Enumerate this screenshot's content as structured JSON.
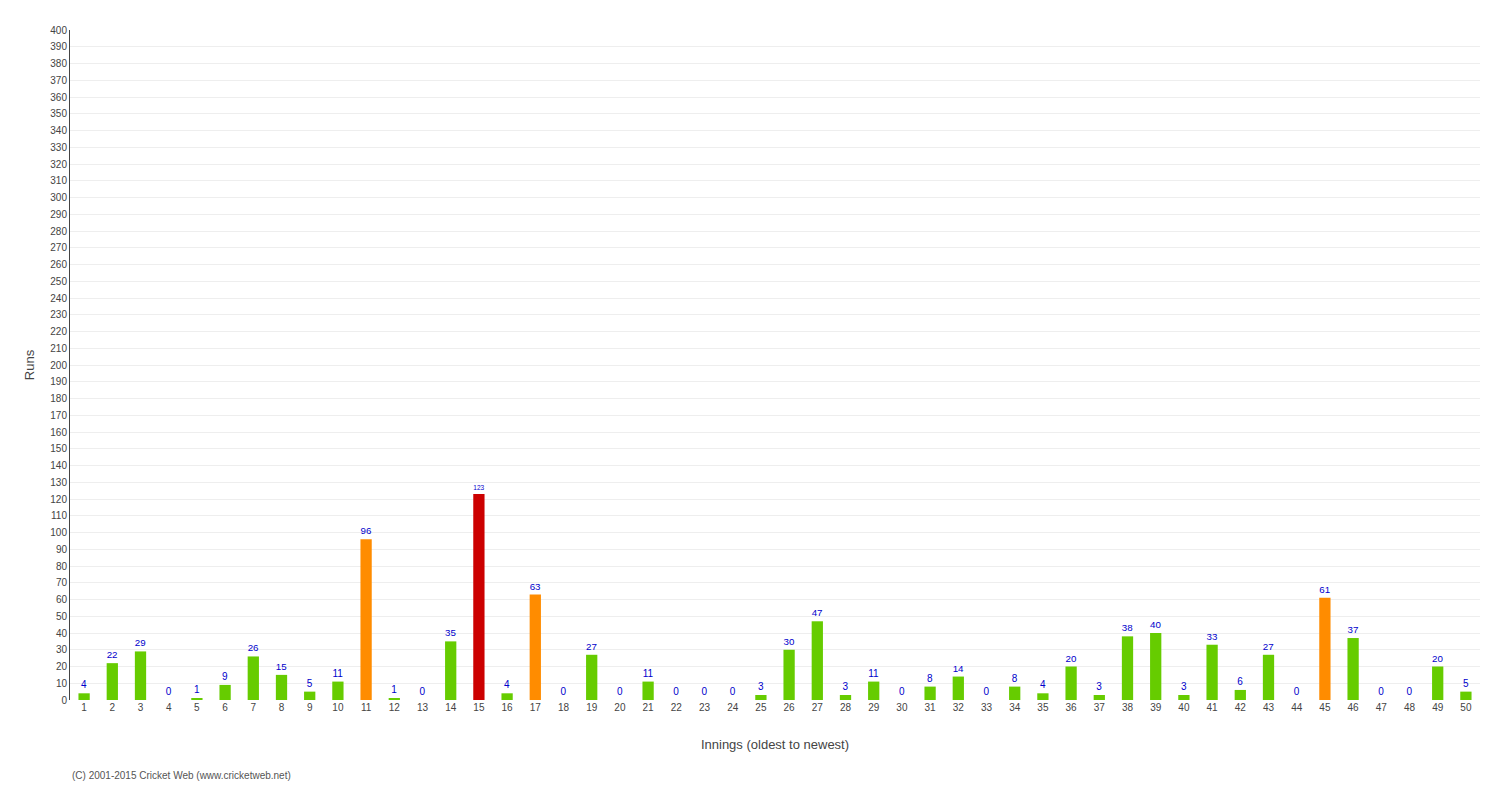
{
  "chart_data": {
    "type": "bar",
    "xlabel": "Innings (oldest to newest)",
    "ylabel": "Runs",
    "categories": [
      "1",
      "2",
      "3",
      "4",
      "5",
      "6",
      "7",
      "8",
      "9",
      "10",
      "11",
      "12",
      "13",
      "14",
      "15",
      "16",
      "17",
      "18",
      "19",
      "20",
      "21",
      "22",
      "23",
      "24",
      "25",
      "26",
      "27",
      "28",
      "29",
      "30",
      "31",
      "32",
      "33",
      "34",
      "35",
      "36",
      "37",
      "38",
      "39",
      "40",
      "41",
      "42",
      "43",
      "44",
      "45",
      "46",
      "47",
      "48",
      "49",
      "50"
    ],
    "values": [
      4,
      22,
      29,
      0,
      1,
      9,
      26,
      15,
      5,
      11,
      96,
      1,
      0,
      35,
      123,
      4,
      63,
      0,
      27,
      0,
      11,
      0,
      0,
      0,
      3,
      30,
      47,
      3,
      11,
      0,
      8,
      14,
      0,
      8,
      4,
      20,
      3,
      38,
      40,
      3,
      33,
      6,
      27,
      0,
      61,
      37,
      0,
      0,
      20,
      5
    ],
    "colors": [
      "#66cc00",
      "#66cc00",
      "#66cc00",
      "#66cc00",
      "#66cc00",
      "#66cc00",
      "#66cc00",
      "#66cc00",
      "#66cc00",
      "#66cc00",
      "#ff8c00",
      "#66cc00",
      "#66cc00",
      "#66cc00",
      "#cc0000",
      "#66cc00",
      "#ff8c00",
      "#66cc00",
      "#66cc00",
      "#66cc00",
      "#66cc00",
      "#66cc00",
      "#66cc00",
      "#66cc00",
      "#66cc00",
      "#66cc00",
      "#66cc00",
      "#66cc00",
      "#66cc00",
      "#66cc00",
      "#66cc00",
      "#66cc00",
      "#66cc00",
      "#66cc00",
      "#66cc00",
      "#66cc00",
      "#66cc00",
      "#66cc00",
      "#66cc00",
      "#66cc00",
      "#66cc00",
      "#66cc00",
      "#66cc00",
      "#66cc00",
      "#ff8c00",
      "#66cc00",
      "#66cc00",
      "#66cc00",
      "#66cc00",
      "#66cc00"
    ],
    "ylim": [
      0,
      400
    ],
    "yticks": [
      0,
      10,
      20,
      30,
      40,
      50,
      60,
      70,
      80,
      90,
      100,
      110,
      120,
      130,
      140,
      150,
      160,
      170,
      180,
      190,
      200,
      210,
      220,
      230,
      240,
      250,
      260,
      270,
      280,
      290,
      300,
      310,
      320,
      330,
      340,
      350,
      360,
      370,
      380,
      390,
      400
    ],
    "grid": true,
    "data_labels": true,
    "annotations": [
      "(C) 2001-2015 Cricket Web (www.cricketweb.net)"
    ]
  }
}
